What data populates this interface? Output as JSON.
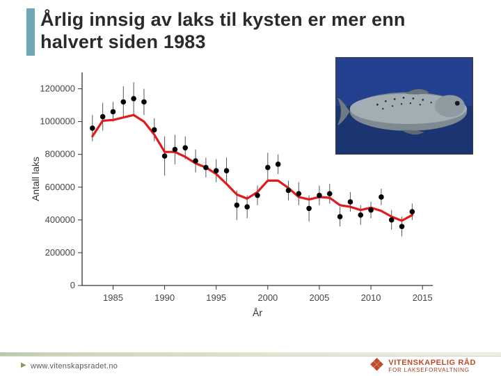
{
  "title": "Årlig innsig av laks til kysten er mer enn halvert siden 1983",
  "footer_url": "www.vitenskapsradet.no",
  "logo": {
    "line1": "VITENSKAPELIG RÅD",
    "line2": "FOR LAKSEFORVALTNING"
  },
  "image_alt": "salmon-photo",
  "chart": {
    "type": "scatter-with-error-and-line",
    "xlabel": "År",
    "ylabel": "Antall laks",
    "xlim": [
      1982,
      2016
    ],
    "ylim": [
      0,
      1300000
    ],
    "xtick_step": 5,
    "xtick_start": 1985,
    "xtick_end": 2015,
    "yticks": [
      0,
      200000,
      400000,
      600000,
      800000,
      1000000,
      1200000
    ],
    "ytick_labels": [
      "0",
      "200000",
      "400000",
      "600000",
      "800000",
      "1000000",
      "1200000"
    ],
    "background_color": "#ffffff",
    "axis_color": "#333333",
    "marker": {
      "shape": "circle",
      "size": 3.8,
      "color": "#000000"
    },
    "error_bar": {
      "color": "#555555",
      "width": 1
    },
    "line": {
      "color": "#e01b1b",
      "width": 3.2
    },
    "points_x": [
      1983,
      1984,
      1985,
      1986,
      1987,
      1988,
      1989,
      1990,
      1991,
      1992,
      1993,
      1994,
      1995,
      1996,
      1997,
      1998,
      1999,
      2000,
      2001,
      2002,
      2003,
      2004,
      2005,
      2006,
      2007,
      2008,
      2009,
      2010,
      2011,
      2012,
      2013,
      2014
    ],
    "points_y": [
      960000,
      1030000,
      1060000,
      1120000,
      1140000,
      1120000,
      950000,
      790000,
      830000,
      840000,
      760000,
      720000,
      700000,
      700000,
      490000,
      480000,
      550000,
      720000,
      740000,
      580000,
      560000,
      470000,
      550000,
      560000,
      420000,
      510000,
      430000,
      460000,
      540000,
      400000,
      360000,
      450000
    ],
    "points_err": [
      80000,
      85000,
      60000,
      95000,
      100000,
      80000,
      70000,
      120000,
      90000,
      70000,
      70000,
      60000,
      70000,
      80000,
      90000,
      70000,
      60000,
      90000,
      60000,
      60000,
      70000,
      80000,
      60000,
      60000,
      60000,
      60000,
      60000,
      50000,
      50000,
      60000,
      60000,
      50000
    ],
    "line_x": [
      1983,
      1984,
      1985,
      1986,
      1987,
      1988,
      1989,
      1990,
      1991,
      1992,
      1993,
      1994,
      1995,
      1996,
      1997,
      1998,
      1999,
      2000,
      2001,
      2002,
      2003,
      2004,
      2005,
      2006,
      2007,
      2008,
      2009,
      2010,
      2011,
      2012,
      2013,
      2014
    ],
    "line_y": [
      910000,
      1005000,
      1010000,
      1025000,
      1040000,
      1000000,
      920000,
      815000,
      815000,
      785000,
      745000,
      720000,
      680000,
      620000,
      555000,
      530000,
      570000,
      640000,
      640000,
      595000,
      540000,
      525000,
      540000,
      535000,
      490000,
      480000,
      460000,
      475000,
      455000,
      420000,
      395000,
      430000
    ]
  }
}
